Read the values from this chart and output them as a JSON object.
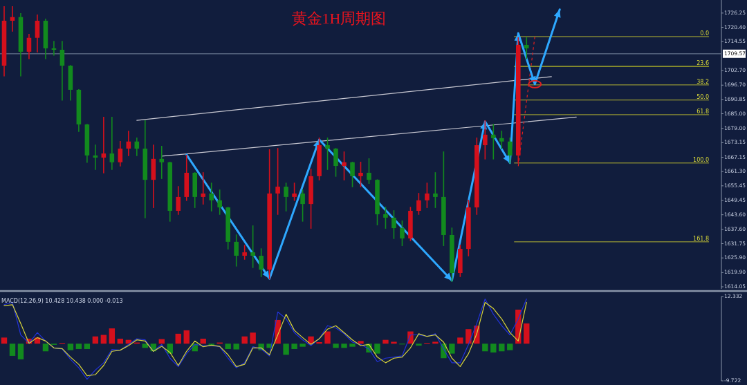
{
  "chart_data": [
    {
      "type": "candlestick",
      "title": "黄金1H周期图",
      "tick_labels": "y",
      "categories": [
        null,
        null,
        null,
        null,
        null,
        null,
        null,
        null,
        null,
        null,
        null,
        null,
        null,
        null,
        null,
        null,
        null,
        null,
        null,
        null,
        null,
        null,
        null,
        null,
        null,
        null,
        null,
        null,
        null,
        null,
        null,
        null,
        null,
        null,
        null,
        null,
        null,
        null,
        null,
        null,
        null,
        null,
        null,
        null,
        null,
        null,
        null,
        null,
        null,
        null,
        null,
        null,
        null,
        null,
        null,
        null,
        null,
        null,
        null,
        null,
        null,
        null,
        null,
        null,
        null,
        null,
        null,
        null,
        null,
        null,
        null,
        null,
        null,
        null,
        null,
        null,
        null,
        null,
        null,
        null,
        null,
        null,
        null,
        null,
        null,
        null,
        null
      ],
      "ohlc": [
        [
          1704.7,
          1728.8,
          1700.5,
          1723.1
        ],
        [
          1723.1,
          1728.8,
          1718.9,
          1724.6
        ],
        [
          1724.6,
          1726.0,
          1700.5,
          1710.4
        ],
        [
          1710.4,
          1717.5,
          1707.6,
          1716.1
        ],
        [
          1716.1,
          1725.4,
          1710.4,
          1723.1
        ],
        [
          1723.1,
          1723.7,
          1707.6,
          1711.8
        ],
        [
          1711.8,
          1714.6,
          1709.0,
          1711.2
        ],
        [
          1711.2,
          1714.6,
          1690.6,
          1704.7
        ],
        [
          1704.7,
          1704.7,
          1690.6,
          1694.8
        ],
        [
          1694.8,
          1694.8,
          1677.8,
          1680.6
        ],
        [
          1680.6,
          1680.6,
          1665.1,
          1667.9
        ],
        [
          1667.9,
          1672.1,
          1662.2,
          1667.0
        ],
        [
          1667.0,
          1683.5,
          1660.8,
          1668.7
        ],
        [
          1668.7,
          1683.5,
          1662.2,
          1665.1
        ],
        [
          1665.1,
          1673.6,
          1663.6,
          1670.7
        ],
        [
          1670.7,
          1677.8,
          1667.9,
          1673.6
        ],
        [
          1673.6,
          1675.0,
          1667.9,
          1670.7
        ],
        [
          1670.7,
          1682.1,
          1642.4,
          1657.9
        ],
        [
          1657.9,
          1672.1,
          1646.6,
          1666.5
        ],
        [
          1666.5,
          1671.6,
          1658.5,
          1665.1
        ],
        [
          1665.1,
          1665.1,
          1641.0,
          1645.2
        ],
        [
          1645.2,
          1655.1,
          1643.8,
          1650.9
        ],
        [
          1650.9,
          1667.9,
          1649.5,
          1660.8
        ],
        [
          1660.8,
          1660.8,
          1646.6,
          1650.9
        ],
        [
          1650.9,
          1660.8,
          1648.0,
          1652.3
        ],
        [
          1652.3,
          1656.5,
          1645.2,
          1649.5
        ],
        [
          1649.5,
          1653.7,
          1643.8,
          1646.6
        ],
        [
          1646.6,
          1646.6,
          1629.6,
          1632.5
        ],
        [
          1632.5,
          1635.3,
          1622.6,
          1626.8
        ],
        [
          1626.8,
          1631.0,
          1625.4,
          1628.2
        ],
        [
          1628.2,
          1639.0,
          1622.0,
          1626.8
        ],
        [
          1626.8,
          1629.6,
          1618.3,
          1621.1
        ],
        [
          1621.1,
          1670.2,
          1617.4,
          1652.3
        ],
        [
          1652.3,
          1670.7,
          1643.8,
          1655.1
        ],
        [
          1655.1,
          1656.5,
          1645.2,
          1650.9
        ],
        [
          1650.9,
          1656.5,
          1649.5,
          1652.3
        ],
        [
          1652.3,
          1653.7,
          1641.0,
          1648.0
        ],
        [
          1648.0,
          1662.2,
          1638.1,
          1659.4
        ],
        [
          1659.4,
          1675.0,
          1657.9,
          1672.1
        ],
        [
          1672.1,
          1675.0,
          1662.2,
          1670.7
        ],
        [
          1670.7,
          1670.7,
          1659.4,
          1663.6
        ],
        [
          1663.6,
          1669.3,
          1657.9,
          1665.1
        ],
        [
          1665.1,
          1665.1,
          1655.1,
          1659.4
        ],
        [
          1659.4,
          1665.1,
          1655.1,
          1660.8
        ],
        [
          1660.8,
          1666.5,
          1656.5,
          1657.9
        ],
        [
          1657.9,
          1657.9,
          1639.5,
          1643.8
        ],
        [
          1643.8,
          1646.6,
          1638.1,
          1642.4
        ],
        [
          1642.4,
          1645.2,
          1633.9,
          1638.1
        ],
        [
          1638.1,
          1641.0,
          1631.0,
          1633.9
        ],
        [
          1633.9,
          1646.6,
          1633.0,
          1645.2
        ],
        [
          1645.2,
          1652.3,
          1643.8,
          1649.5
        ],
        [
          1649.5,
          1656.5,
          1646.6,
          1652.3
        ],
        [
          1652.3,
          1660.8,
          1646.6,
          1650.9
        ],
        [
          1650.9,
          1669.3,
          1631.0,
          1635.3
        ],
        [
          1635.3,
          1638.1,
          1616.3,
          1619.7
        ],
        [
          1619.7,
          1631.0,
          1618.3,
          1629.6
        ],
        [
          1629.6,
          1649.5,
          1626.8,
          1646.6
        ],
        [
          1646.6,
          1675.0,
          1643.8,
          1672.1
        ],
        [
          1672.1,
          1682.1,
          1666.5,
          1676.4
        ],
        [
          1676.4,
          1680.6,
          1666.5,
          1675.0
        ],
        [
          1675.0,
          1677.8,
          1670.7,
          1673.6
        ],
        [
          1673.6,
          1675.0,
          1664.8,
          1667.9
        ],
        [
          1667.9,
          1716.1,
          1664.8,
          1713.2
        ],
        [
          1713.2,
          1716.1,
          1707.6,
          1711.8
        ],
        null,
        null,
        null,
        null,
        null,
        null,
        null,
        null,
        null,
        null,
        null,
        null,
        null,
        null,
        null,
        null,
        null,
        null,
        null,
        null,
        null,
        null,
        null
      ],
      "colors": [
        "#d4101c",
        "#d4101c",
        "#128a1e",
        "#d4101c",
        "#d4101c",
        "#128a1e",
        "#128a1e",
        "#128a1e",
        "#128a1e",
        "#128a1e",
        "#128a1e",
        "#128a1e",
        "#d4101c",
        "#128a1e",
        "#d4101c",
        "#d4101c",
        "#128a1e",
        "#128a1e",
        "#d4101c",
        "#128a1e",
        "#128a1e",
        "#d4101c",
        "#d4101c",
        "#128a1e",
        "#d4101c",
        "#128a1e",
        "#128a1e",
        "#128a1e",
        "#128a1e",
        "#d4101c",
        "#128a1e",
        "#128a1e",
        "#d4101c",
        "#d4101c",
        "#128a1e",
        "#d4101c",
        "#128a1e",
        "#d4101c",
        "#d4101c",
        "#128a1e",
        "#128a1e",
        "#d4101c",
        "#128a1e",
        "#d4101c",
        "#128a1e",
        "#128a1e",
        "#128a1e",
        "#128a1e",
        "#128a1e",
        "#d4101c",
        "#d4101c",
        "#d4101c",
        "#128a1e",
        "#128a1e",
        "#128a1e",
        "#d4101c",
        "#d4101c",
        "#d4101c",
        "#d4101c",
        "#128a1e",
        "#128a1e",
        "#128a1e",
        "#d4101c",
        "#128a1e",
        null,
        null,
        null,
        null,
        null,
        null,
        null,
        null,
        null,
        null,
        null,
        null,
        null,
        null,
        null,
        null,
        null,
        null,
        null,
        null,
        null,
        null,
        null
      ],
      "annotations": [
        {
          "text": "0.0",
          "y": 1716.6
        },
        {
          "text": "23.6",
          "y": 1704.4
        },
        {
          "text": "38.2",
          "y": 1696.8
        },
        {
          "text": "50.0",
          "y": 1690.6
        },
        {
          "text": "61.8",
          "y": 1684.6
        },
        {
          "text": "100.0",
          "y": 1664.8
        },
        {
          "text": "161.8",
          "y": 1632.5
        }
      ],
      "ylim": [
        1613.2,
        1731.6
      ],
      "yticks": [
        1614.05,
        {
          "value": 1619.9,
          "label": "1619.90"
        },
        {
          "value": 1625.9,
          "label": "1625.90"
        },
        1631.75,
        {
          "value": 1637.6,
          "label": "1637.60"
        },
        {
          "value": 1643.6,
          "label": "1643.60"
        },
        1649.45,
        1655.45,
        {
          "value": 1661.3,
          "label": "1661.30"
        },
        1667.15,
        1673.15,
        {
          "value": 1679,
          "label": "1679.00"
        },
        {
          "value": 1685,
          "label": "1685.00"
        },
        1690.85,
        {
          "value": 1696.7,
          "label": "1696.70"
        },
        {
          "value": 1702.7,
          "label": "1702.70"
        },
        1709.57,
        1714.55,
        {
          "value": 1720.4,
          "label": "1720.40"
        },
        1726.25
      ],
      "ref_lines": [
        {
          "axis": "y",
          "value": 1709.57,
          "color": "#56647e"
        },
        {
          "axis": "y",
          "value": 1716.6,
          "color": "#b4b432"
        },
        {
          "axis": "y",
          "value": 1704.4,
          "color": "#f0f020"
        },
        {
          "axis": "y",
          "value": 1696.8,
          "color": "#b4b432"
        },
        {
          "axis": "y",
          "value": 1690.6,
          "color": "#b4b432"
        },
        {
          "axis": "y",
          "value": 1684.6,
          "color": "#b4b432"
        },
        {
          "axis": "y",
          "value": 1664.8,
          "color": "#b4b432"
        },
        {
          "axis": "y",
          "value": 1632.5,
          "color": "#b4b432"
        }
      ],
      "series": [
        {
          "type": "line",
          "color": "#c8c8d2",
          "values": [
            null,
            null,
            null,
            null,
            null,
            null,
            null,
            null,
            null,
            null,
            null,
            null,
            null,
            null,
            null,
            null,
            1682.3,
            null,
            null,
            null,
            null,
            null,
            null,
            null,
            null,
            null,
            null,
            null,
            null,
            null,
            null,
            null,
            null,
            null,
            null,
            null,
            null,
            null,
            null,
            null,
            null,
            null,
            null,
            null,
            null,
            null,
            null,
            null,
            null,
            null,
            null,
            null,
            null,
            null,
            null,
            null,
            null,
            null,
            null,
            null,
            null,
            null,
            null,
            null,
            null,
            null,
            1700.2,
            null,
            null,
            null,
            null,
            null,
            null,
            null,
            null,
            null,
            null,
            null,
            null,
            null,
            null,
            null,
            null,
            null,
            null,
            null,
            null
          ]
        },
        {
          "type": "line",
          "color": "#c8c8d2",
          "values": [
            null,
            null,
            null,
            null,
            null,
            null,
            null,
            null,
            null,
            null,
            null,
            null,
            null,
            null,
            null,
            null,
            null,
            null,
            null,
            1667.6,
            null,
            null,
            null,
            null,
            null,
            null,
            null,
            null,
            null,
            null,
            null,
            null,
            null,
            null,
            null,
            null,
            null,
            null,
            null,
            null,
            null,
            null,
            null,
            null,
            null,
            null,
            null,
            null,
            null,
            null,
            null,
            null,
            null,
            null,
            null,
            null,
            null,
            null,
            null,
            null,
            null,
            null,
            null,
            null,
            null,
            null,
            null,
            null,
            null,
            1683.6,
            null,
            null,
            null,
            null,
            null,
            null,
            null,
            null,
            null,
            null,
            null,
            null,
            null,
            null,
            null,
            null,
            null
          ]
        },
        {
          "type": "line",
          "color": "#e02020",
          "line_style": "dotted",
          "values": [
            null,
            null,
            null,
            null,
            null,
            null,
            null,
            null,
            null,
            null,
            null,
            null,
            null,
            null,
            null,
            null,
            null,
            null,
            null,
            null,
            null,
            null,
            null,
            null,
            null,
            null,
            null,
            null,
            null,
            null,
            null,
            null,
            null,
            null,
            null,
            null,
            null,
            null,
            null,
            null,
            null,
            null,
            null,
            null,
            null,
            null,
            null,
            null,
            null,
            null,
            null,
            null,
            null,
            null,
            null,
            null,
            null,
            null,
            null,
            null,
            null,
            null,
            1663.5,
            null,
            1716.6,
            null,
            null,
            null,
            null,
            null,
            null,
            null,
            null,
            null,
            null,
            null,
            null,
            null,
            null,
            null,
            null,
            null,
            null,
            null,
            null,
            null,
            null
          ]
        },
        {
          "type": "line",
          "color": "#2ea8ff",
          "values": [
            null,
            null,
            null,
            null,
            null,
            null,
            null,
            null,
            null,
            null,
            null,
            null,
            null,
            null,
            null,
            null,
            null,
            null,
            null,
            null,
            null,
            null,
            1668.2,
            null,
            null,
            null,
            null,
            null,
            null,
            null,
            null,
            null,
            1617.4,
            null,
            null,
            null,
            null,
            null,
            1674.4,
            null,
            null,
            null,
            null,
            null,
            null,
            null,
            null,
            null,
            null,
            null,
            null,
            null,
            null,
            null,
            1616.6,
            null,
            null,
            null,
            1681.8,
            null,
            null,
            1664.8,
            1718.0,
            null,
            1697.1,
            null,
            null,
            1727.7,
            null,
            null,
            null,
            null,
            null,
            null,
            null,
            null,
            null,
            null,
            null,
            null,
            null,
            null,
            null,
            null,
            null,
            null,
            null
          ]
        }
      ]
    },
    {
      "type": "bar",
      "tick_labels": "y",
      "annotations": [
        "MACD(12,26,9) 10.428 10.438 0.000 -0.013"
      ],
      "categories": [
        null,
        null,
        null,
        null,
        null,
        null,
        null,
        null,
        null,
        null,
        null,
        null,
        null,
        null,
        null,
        null,
        null,
        null,
        null,
        null,
        null,
        null,
        null,
        null,
        null,
        null,
        null,
        null,
        null,
        null,
        null,
        null,
        null,
        null,
        null,
        null,
        null,
        null,
        null,
        null,
        null,
        null,
        null,
        null,
        null,
        null,
        null,
        null,
        null,
        null,
        null,
        null,
        null,
        null,
        null,
        null,
        null,
        null,
        null,
        null,
        null,
        null,
        null,
        null,
        null,
        null,
        null,
        null,
        null,
        null,
        null,
        null,
        null,
        null,
        null,
        null,
        null,
        null,
        null,
        null,
        null,
        null,
        null,
        null,
        null,
        null,
        null
      ],
      "ylim": [
        -9.722,
        12.332
      ],
      "yticks": [
        12.332,
        -9.722
      ],
      "series": [
        {
          "type": "bar",
          "values": [
            1.6,
            -3.2,
            -4.1,
            1.3,
            1.6,
            -2.0,
            -0.3,
            0.2,
            -1.7,
            -1.4,
            -1.4,
            1.9,
            2.3,
            4.0,
            1.3,
            1.0,
            0.3,
            -1.1,
            -2.0,
            1.2,
            -2.6,
            2.6,
            3.5,
            -2.0,
            1.3,
            -0.5,
            0.3,
            -1.4,
            -1.5,
            1.9,
            2.9,
            -1.7,
            -1.1,
            6.2,
            -2.9,
            -1.4,
            -0.8,
            1.9,
            0.4,
            3.2,
            -1.1,
            -1.1,
            -0.8,
            0.7,
            -2.3,
            -2.6,
            1.0,
            0.5,
            -0.2,
            3.2,
            -0.5,
            0.2,
            0.5,
            -3.8,
            -2.6,
            1.6,
            3.8,
            4.7,
            -2.0,
            -2.3,
            -2.0,
            -1.7,
            8.9,
            5.3,
            null,
            null,
            null,
            null,
            null,
            null,
            null,
            null,
            null,
            null,
            null,
            null,
            null,
            null,
            null,
            null,
            null,
            null,
            null,
            null,
            null,
            null,
            null
          ],
          "colors": [
            "#d4101c",
            "#128a1e",
            "#128a1e",
            "#d4101c",
            "#d4101c",
            "#128a1e",
            "#128a1e",
            "#d4101c",
            "#128a1e",
            "#128a1e",
            "#128a1e",
            "#d4101c",
            "#d4101c",
            "#d4101c",
            "#d4101c",
            "#d4101c",
            "#d4101c",
            "#128a1e",
            "#128a1e",
            "#d4101c",
            "#128a1e",
            "#d4101c",
            "#d4101c",
            "#128a1e",
            "#d4101c",
            "#128a1e",
            "#d4101c",
            "#128a1e",
            "#128a1e",
            "#d4101c",
            "#d4101c",
            "#128a1e",
            "#128a1e",
            "#d4101c",
            "#128a1e",
            "#128a1e",
            "#128a1e",
            "#d4101c",
            "#d4101c",
            "#d4101c",
            "#128a1e",
            "#128a1e",
            "#128a1e",
            "#d4101c",
            "#128a1e",
            "#128a1e",
            "#d4101c",
            "#d4101c",
            "#128a1e",
            "#d4101c",
            "#128a1e",
            "#d4101c",
            "#d4101c",
            "#128a1e",
            "#128a1e",
            "#d4101c",
            "#d4101c",
            "#d4101c",
            "#128a1e",
            "#128a1e",
            "#128a1e",
            "#128a1e",
            "#d4101c",
            "#d4101c",
            null,
            null,
            null,
            null,
            null,
            null,
            null,
            null,
            null,
            null,
            null,
            null,
            null,
            null,
            null,
            null,
            null,
            null,
            null,
            null,
            null,
            null,
            null
          ]
        },
        {
          "type": "line",
          "color": "#2233d8",
          "values": [
            10.2,
            10.8,
            2.3,
            0.1,
            2.9,
            0.7,
            -1.1,
            -1.4,
            -4.1,
            -6.3,
            -9.3,
            -6.9,
            -5.0,
            -1.5,
            -1.7,
            -0.2,
            1.3,
            1.0,
            -2.0,
            -0.2,
            -3.8,
            -6.0,
            -2.6,
            -0.2,
            -0.5,
            -0.5,
            -0.8,
            -3.8,
            -6.3,
            -5.0,
            -0.8,
            -1.4,
            -3.2,
            8.3,
            6.5,
            2.9,
            1.0,
            -0.5,
            1.3,
            4.7,
            4.1,
            2.6,
            0.4,
            -0.2,
            -1.4,
            -4.7,
            -3.8,
            -3.5,
            -3.2,
            2.3,
            2.3,
            1.9,
            2.6,
            -1.4,
            -5.0,
            -5.0,
            -0.2,
            5.3,
            11.7,
            7.7,
            4.7,
            2.3,
            6.5,
            11.7,
            null,
            null,
            null,
            null,
            null,
            null,
            null,
            null,
            null,
            null,
            null,
            null,
            null,
            null,
            null,
            null,
            null,
            null,
            null,
            null,
            null,
            null,
            null
          ]
        },
        {
          "type": "line",
          "color": "#d8d43a",
          "values": [
            9.9,
            10.2,
            5.3,
            0.1,
            1.6,
            0.7,
            -1.1,
            -1.3,
            -3.5,
            -5.4,
            -8.4,
            -8.1,
            -5.7,
            -2.0,
            -1.7,
            -0.5,
            1.0,
            0.7,
            -2.0,
            -0.7,
            -2.3,
            -5.7,
            -2.0,
            0.7,
            -0.8,
            -0.4,
            -0.7,
            -2.9,
            -6.0,
            -5.4,
            -1.1,
            -1.1,
            -2.9,
            2.3,
            7.7,
            3.5,
            1.6,
            -0.2,
            1.3,
            3.8,
            4.7,
            2.9,
            1.0,
            -0.5,
            -0.2,
            -3.5,
            -5.0,
            -3.8,
            -3.5,
            -1.1,
            2.6,
            1.9,
            2.3,
            0.4,
            -3.8,
            -6.0,
            -2.6,
            2.6,
            10.8,
            9.2,
            6.5,
            2.9,
            0.7,
            10.8,
            null,
            null,
            null,
            null,
            null,
            null,
            null,
            null,
            null,
            null,
            null,
            null,
            null,
            null,
            null,
            null,
            null,
            null,
            null,
            null,
            null,
            null,
            null
          ]
        }
      ]
    }
  ]
}
